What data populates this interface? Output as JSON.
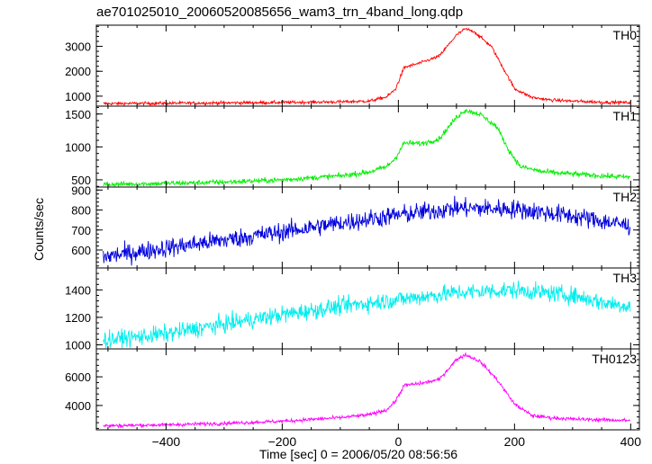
{
  "chart_data": {
    "type": "line",
    "title": "ae701025010_20060520085656_wam3_trn_4band_long.qdp",
    "xlabel": "Time [sec] 0 = 2006/05/20 08:56:56",
    "ylabel": "Counts/sec",
    "xlim": [
      -520,
      415
    ],
    "x_ticks": [
      -400,
      -200,
      0,
      200,
      400
    ],
    "x_tick_labels": [
      "−400",
      "−200",
      "0",
      "200",
      "400"
    ],
    "panels": [
      {
        "name": "TH0",
        "color": "#ff0000",
        "ylim": [
          600,
          3850
        ],
        "y_ticks": [
          1000,
          2000,
          3000
        ],
        "noise": 45,
        "x": [
          -510,
          -400,
          -300,
          -200,
          -100,
          -50,
          -20,
          -5,
          10,
          40,
          70,
          100,
          115,
          130,
          160,
          180,
          200,
          230,
          260,
          300,
          350,
          400
        ],
        "y": [
          700,
          715,
          730,
          745,
          770,
          800,
          970,
          1280,
          2150,
          2350,
          2600,
          3450,
          3700,
          3600,
          3000,
          2150,
          1300,
          950,
          850,
          800,
          760,
          740
        ]
      },
      {
        "name": "TH1",
        "color": "#00ee00",
        "ylim": [
          390,
          1620
        ],
        "y_ticks": [
          500,
          1000,
          1500
        ],
        "noise": 28,
        "x": [
          -510,
          -400,
          -300,
          -200,
          -100,
          -50,
          -20,
          -5,
          10,
          40,
          70,
          100,
          115,
          140,
          170,
          190,
          210,
          250,
          300,
          350,
          400
        ],
        "y": [
          430,
          445,
          465,
          500,
          560,
          620,
          700,
          830,
          1060,
          1050,
          1120,
          1450,
          1560,
          1500,
          1300,
          950,
          700,
          620,
          590,
          560,
          540
        ]
      },
      {
        "name": "TH2",
        "color": "#0000dd",
        "ylim": [
          510,
          915
        ],
        "y_ticks": [
          600,
          700,
          800,
          900
        ],
        "noise": 34,
        "x": [
          -510,
          -400,
          -300,
          -200,
          -100,
          0,
          100,
          200,
          300,
          400
        ],
        "y": [
          565,
          610,
          650,
          690,
          735,
          775,
          810,
          805,
          770,
          720
        ]
      },
      {
        "name": "TH3",
        "color": "#00eeee",
        "ylim": [
          970,
          1560
        ],
        "y_ticks": [
          1000,
          1200,
          1400
        ],
        "noise": 45,
        "x": [
          -510,
          -400,
          -300,
          -200,
          -100,
          0,
          100,
          200,
          300,
          350,
          400
        ],
        "y": [
          1030,
          1080,
          1150,
          1220,
          1280,
          1330,
          1380,
          1400,
          1360,
          1310,
          1280
        ]
      },
      {
        "name": "TH0123",
        "color": "#ff00ff",
        "ylim": [
          2300,
          7950
        ],
        "y_ticks": [
          4000,
          6000
        ],
        "noise": 90,
        "x": [
          -510,
          -400,
          -300,
          -200,
          -100,
          -50,
          -20,
          -5,
          10,
          40,
          70,
          100,
          115,
          140,
          170,
          200,
          230,
          260,
          300,
          350,
          400
        ],
        "y": [
          2580,
          2650,
          2750,
          2900,
          3150,
          3350,
          3700,
          4300,
          5400,
          5550,
          5800,
          7200,
          7550,
          7100,
          5800,
          4100,
          3300,
          3150,
          3050,
          3000,
          2950
        ]
      }
    ]
  }
}
